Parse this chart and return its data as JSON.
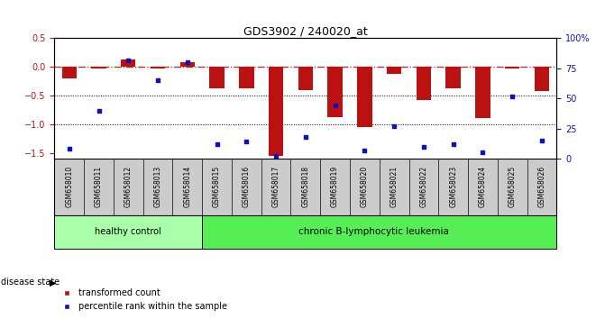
{
  "title": "GDS3902 / 240020_at",
  "samples": [
    "GSM658010",
    "GSM658011",
    "GSM658012",
    "GSM658013",
    "GSM658014",
    "GSM658015",
    "GSM658016",
    "GSM658017",
    "GSM658018",
    "GSM658019",
    "GSM658020",
    "GSM658021",
    "GSM658022",
    "GSM658023",
    "GSM658024",
    "GSM658025",
    "GSM658026"
  ],
  "red_bars": [
    -0.2,
    -0.02,
    0.13,
    -0.02,
    0.08,
    -0.38,
    -0.38,
    -1.55,
    -0.4,
    -0.88,
    -1.05,
    -0.12,
    -0.57,
    -0.38,
    -0.9,
    -0.03,
    -0.42
  ],
  "blue_squares_pct": [
    8,
    40,
    82,
    65,
    80,
    12,
    14,
    2,
    18,
    44,
    7,
    27,
    10,
    12,
    5,
    52,
    15
  ],
  "ylim_left": [
    -1.6,
    0.5
  ],
  "ylim_right": [
    0,
    100
  ],
  "yticks_left": [
    0.5,
    0.0,
    -0.5,
    -1.0,
    -1.5
  ],
  "yticks_right": [
    0,
    25,
    50,
    75,
    100
  ],
  "healthy_count": 5,
  "healthy_label": "healthy control",
  "disease_label": "chronic B-lymphocytic leukemia",
  "disease_state_label": "disease state",
  "legend_red": "transformed count",
  "legend_blue": "percentile rank within the sample",
  "bar_color": "#bb1111",
  "square_color": "#1111bb",
  "hline_color": "#cc2222",
  "dotted_color": "#000000",
  "healthy_bg": "#aaffaa",
  "disease_bg": "#55ee55",
  "sample_bg": "#cccccc",
  "bg_white": "#ffffff"
}
